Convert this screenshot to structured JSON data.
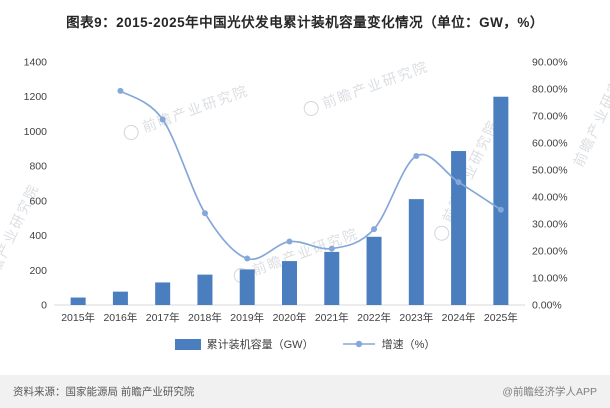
{
  "title": "图表9：2015-2025年中国光伏发电累计装机容量变化情况（单位：GW，%）",
  "legend": {
    "bars": "累计装机容量（GW）",
    "line": "增速（%）"
  },
  "footer": {
    "source": "资料来源：国家能源局  前瞻产业研究院",
    "credit": "@前瞻经济学人APP"
  },
  "watermark": {
    "text": "前瞻产业研究院"
  },
  "colors": {
    "bar": "#4A7EBE",
    "line": "#85A8D8",
    "axis_text": "#404040",
    "axis_line": "#D9D9D9"
  },
  "chart_data": {
    "type": "bar",
    "subtype": "bar+line combo, dual axis",
    "title": "图表9：2015-2025年中国光伏发电累计装机容量变化情况（单位：GW，%）",
    "categories": [
      "2015年",
      "2016年",
      "2017年",
      "2018年",
      "2019年",
      "2020年",
      "2021年",
      "2022年",
      "2023年",
      "2024年",
      "2025年"
    ],
    "series": [
      {
        "name": "累计装机容量（GW）",
        "type": "bar",
        "axis": "left",
        "values": [
          43,
          77,
          130,
          175,
          205,
          253,
          306,
          393,
          610,
          887,
          1200
        ]
      },
      {
        "name": "增速（%）",
        "type": "line",
        "axis": "right",
        "values": [
          null,
          79.3,
          68.7,
          34.0,
          17.2,
          23.5,
          20.9,
          28.1,
          55.2,
          45.5,
          35.3
        ]
      }
    ],
    "left_axis": {
      "min": 0,
      "max": 1400,
      "step": 200,
      "ticks": [
        "0",
        "200",
        "400",
        "600",
        "800",
        "1000",
        "1200",
        "1400"
      ]
    },
    "right_axis": {
      "min": 0,
      "max": 90,
      "step": 10,
      "ticks": [
        "0.00%",
        "10.00%",
        "20.00%",
        "30.00%",
        "40.00%",
        "50.00%",
        "60.00%",
        "70.00%",
        "80.00%",
        "90.00%"
      ]
    },
    "grid": false,
    "legend_position": "bottom"
  }
}
